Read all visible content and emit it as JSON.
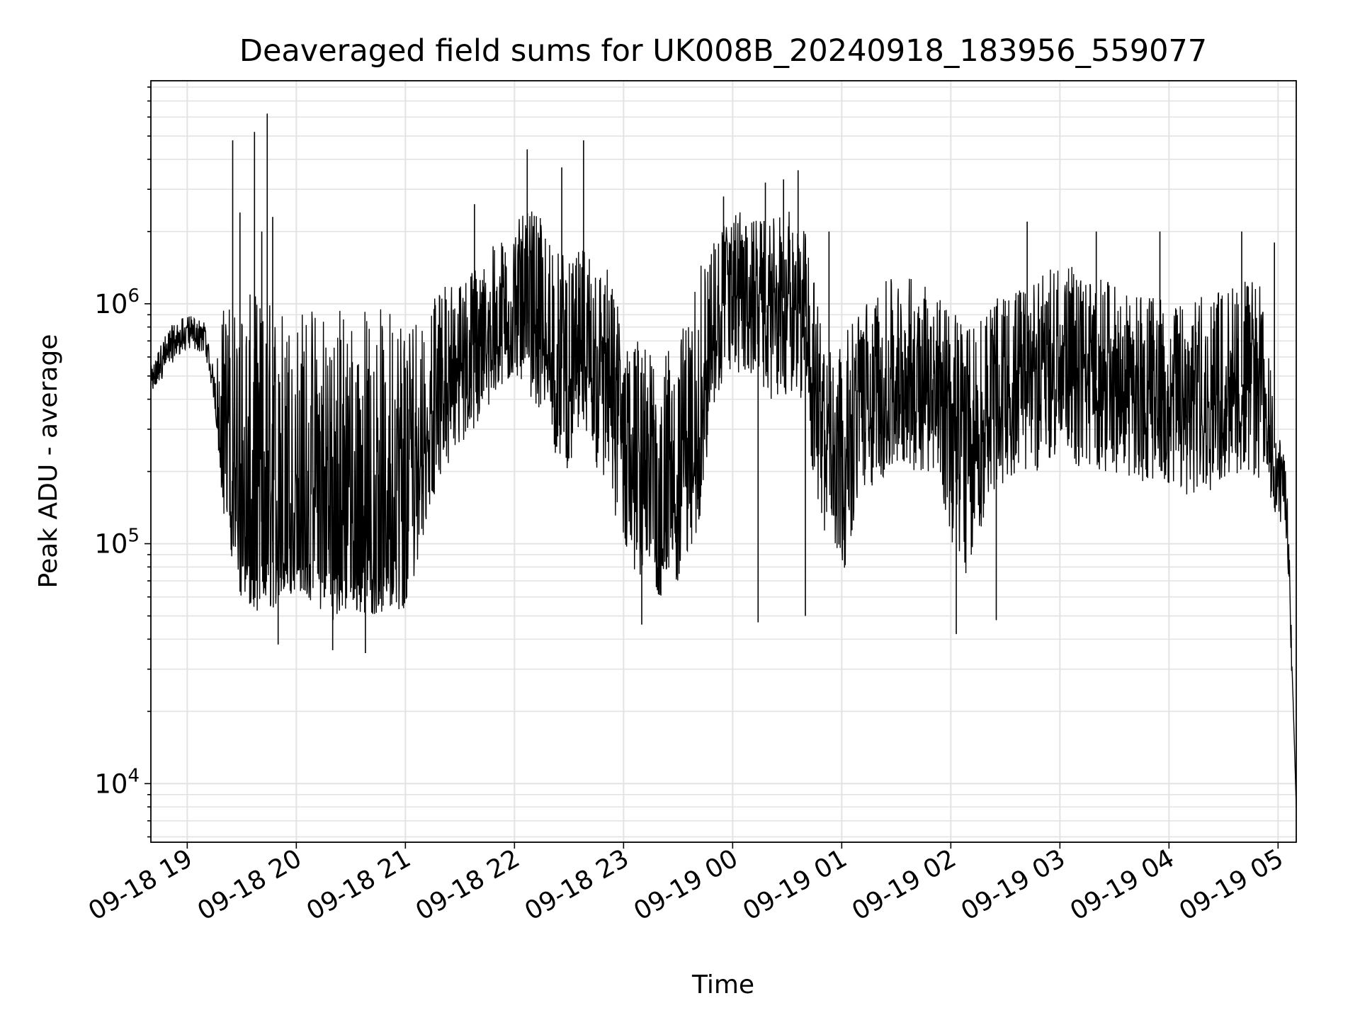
{
  "chart_data": {
    "type": "line",
    "title": "Deaveraged field sums for UK008B_20240918_183956_559077",
    "xlabel": "Time",
    "ylabel": "Peak ADU - average",
    "yscale": "log",
    "ylim": [
      5700,
      8500000
    ],
    "xlim": [
      "2024-09-18 18:40",
      "2024-09-19 05:10"
    ],
    "grid": true,
    "line_color": "#000000",
    "x_ticks": [
      {
        "time": "2024-09-18 19:00",
        "label": "09-18 19"
      },
      {
        "time": "2024-09-18 20:00",
        "label": "09-18 20"
      },
      {
        "time": "2024-09-18 21:00",
        "label": "09-18 21"
      },
      {
        "time": "2024-09-18 22:00",
        "label": "09-18 22"
      },
      {
        "time": "2024-09-18 23:00",
        "label": "09-18 23"
      },
      {
        "time": "2024-09-19 00:00",
        "label": "09-19 00"
      },
      {
        "time": "2024-09-19 01:00",
        "label": "09-19 01"
      },
      {
        "time": "2024-09-19 02:00",
        "label": "09-19 02"
      },
      {
        "time": "2024-09-19 03:00",
        "label": "09-19 03"
      },
      {
        "time": "2024-09-19 04:00",
        "label": "09-19 04"
      },
      {
        "time": "2024-09-19 05:00",
        "label": "09-19 05"
      }
    ],
    "y_ticks": [
      {
        "value": 10000,
        "base": "10",
        "exp": "4"
      },
      {
        "value": 100000,
        "base": "10",
        "exp": "5"
      },
      {
        "value": 1000000,
        "base": "10",
        "exp": "6"
      }
    ],
    "series": [
      {
        "x": [
          "2024-09-18 18:40",
          "2024-09-18 18:50",
          "2024-09-18 19:00",
          "2024-09-18 19:10",
          "2024-09-18 19:15",
          "2024-09-18 19:20",
          "2024-09-18 19:30",
          "2024-09-18 19:40",
          "2024-09-18 19:50",
          "2024-09-18 20:00",
          "2024-09-18 20:10",
          "2024-09-18 20:20",
          "2024-09-18 20:30",
          "2024-09-18 20:40",
          "2024-09-18 20:50",
          "2024-09-18 21:00",
          "2024-09-18 21:10",
          "2024-09-18 21:20",
          "2024-09-18 21:30",
          "2024-09-18 21:40",
          "2024-09-18 21:50",
          "2024-09-18 22:00",
          "2024-09-18 22:10",
          "2024-09-18 22:20",
          "2024-09-18 22:30",
          "2024-09-18 22:40",
          "2024-09-18 22:50",
          "2024-09-18 23:00",
          "2024-09-18 23:10",
          "2024-09-18 23:20",
          "2024-09-18 23:30",
          "2024-09-18 23:40",
          "2024-09-18 23:50",
          "2024-09-19 00:00",
          "2024-09-19 00:10",
          "2024-09-19 00:20",
          "2024-09-19 00:30",
          "2024-09-19 00:40",
          "2024-09-19 00:50",
          "2024-09-19 01:00",
          "2024-09-19 01:10",
          "2024-09-19 01:20",
          "2024-09-19 01:30",
          "2024-09-19 01:40",
          "2024-09-19 01:50",
          "2024-09-19 02:00",
          "2024-09-19 02:10",
          "2024-09-19 02:20",
          "2024-09-19 02:30",
          "2024-09-19 02:40",
          "2024-09-19 02:50",
          "2024-09-19 03:00",
          "2024-09-19 03:10",
          "2024-09-19 03:20",
          "2024-09-19 03:30",
          "2024-09-19 03:40",
          "2024-09-19 03:50",
          "2024-09-19 04:00",
          "2024-09-19 04:10",
          "2024-09-19 04:20",
          "2024-09-19 04:30",
          "2024-09-19 04:40",
          "2024-09-19 04:50",
          "2024-09-19 05:00",
          "2024-09-19 05:05",
          "2024-09-19 05:10"
        ],
        "y": [
          480000,
          650000,
          750000,
          700000,
          420000,
          200000,
          90000,
          80000,
          85000,
          90000,
          85000,
          75000,
          80000,
          78000,
          80000,
          75000,
          300000,
          450000,
          500000,
          520000,
          700000,
          900000,
          800000,
          600000,
          500000,
          550000,
          450000,
          300000,
          150000,
          110000,
          120000,
          250000,
          800000,
          1200000,
          1000000,
          900000,
          1100000,
          800000,
          300000,
          260000,
          400000,
          420000,
          450000,
          500000,
          480000,
          350000,
          280000,
          380000,
          400000,
          450000,
          500000,
          550000,
          500000,
          480000,
          470000,
          450000,
          420000,
          400000,
          380000,
          400000,
          420000,
          450000,
          420000,
          220000,
          150000,
          8000
        ],
        "band_low": [
          400000,
          550000,
          650000,
          620000,
          380000,
          130000,
          55000,
          50000,
          55000,
          65000,
          55000,
          48000,
          52000,
          50000,
          52000,
          50000,
          110000,
          200000,
          250000,
          300000,
          400000,
          500000,
          400000,
          250000,
          200000,
          250000,
          150000,
          90000,
          70000,
          60000,
          65000,
          100000,
          350000,
          500000,
          500000,
          400000,
          400000,
          300000,
          100000,
          70000,
          150000,
          180000,
          200000,
          200000,
          200000,
          100000,
          70000,
          150000,
          180000,
          200000,
          200000,
          250000,
          200000,
          200000,
          200000,
          180000,
          170000,
          160000,
          160000,
          160000,
          180000,
          200000,
          180000,
          120000,
          100000,
          8000
        ],
        "band_high": [
          550000,
          800000,
          900000,
          850000,
          500000,
          1000000,
          1100000,
          1100000,
          1050000,
          1000000,
          1050000,
          1050000,
          1000000,
          1000000,
          1000000,
          1000000,
          900000,
          1200000,
          1300000,
          1500000,
          1800000,
          2200000,
          2500000,
          2000000,
          1500000,
          1800000,
          1500000,
          900000,
          700000,
          600000,
          700000,
          1300000,
          2000000,
          2500000,
          2300000,
          2200000,
          2500000,
          2000000,
          800000,
          700000,
          1000000,
          1200000,
          1300000,
          1300000,
          1200000,
          1000000,
          800000,
          1000000,
          1100000,
          1200000,
          1300000,
          1500000,
          1400000,
          1300000,
          1200000,
          1100000,
          1100000,
          1000000,
          1000000,
          1100000,
          1200000,
          1300000,
          1200000,
          300000,
          200000,
          8000
        ]
      }
    ],
    "spikes": [
      {
        "x": "2024-09-18 19:25",
        "y": 4800000
      },
      {
        "x": "2024-09-18 19:37",
        "y": 5200000
      },
      {
        "x": "2024-09-18 19:44",
        "y": 6200000
      },
      {
        "x": "2024-09-18 19:47",
        "y": 2300000
      },
      {
        "x": "2024-09-18 19:41",
        "y": 2000000
      },
      {
        "x": "2024-09-18 19:29",
        "y": 2400000
      },
      {
        "x": "2024-09-18 21:38",
        "y": 2600000
      },
      {
        "x": "2024-09-18 22:07",
        "y": 4400000
      },
      {
        "x": "2024-09-18 22:26",
        "y": 3700000
      },
      {
        "x": "2024-09-18 22:38",
        "y": 4800000
      },
      {
        "x": "2024-09-18 23:55",
        "y": 2800000
      },
      {
        "x": "2024-09-19 00:18",
        "y": 3200000
      },
      {
        "x": "2024-09-19 00:28",
        "y": 3300000
      },
      {
        "x": "2024-09-19 00:36",
        "y": 3600000
      },
      {
        "x": "2024-09-19 00:53",
        "y": 2000000
      },
      {
        "x": "2024-09-19 02:42",
        "y": 2200000
      },
      {
        "x": "2024-09-19 03:55",
        "y": 2000000
      },
      {
        "x": "2024-09-19 03:20",
        "y": 2000000
      },
      {
        "x": "2024-09-19 04:40",
        "y": 2000000
      },
      {
        "x": "2024-09-19 04:58",
        "y": 1800000
      },
      {
        "x": "2024-09-18 19:50",
        "y": 38000
      },
      {
        "x": "2024-09-18 20:20",
        "y": 36000
      },
      {
        "x": "2024-09-18 20:38",
        "y": 35000
      },
      {
        "x": "2024-09-18 23:10",
        "y": 46000
      },
      {
        "x": "2024-09-19 00:14",
        "y": 47000
      },
      {
        "x": "2024-09-19 02:03",
        "y": 42000
      },
      {
        "x": "2024-09-19 02:25",
        "y": 48000
      },
      {
        "x": "2024-09-19 00:40",
        "y": 50000
      }
    ]
  }
}
